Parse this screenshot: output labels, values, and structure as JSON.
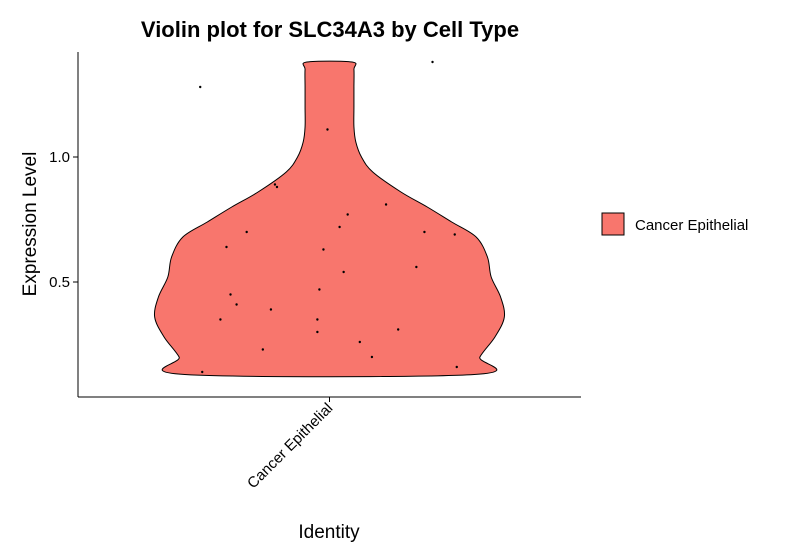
{
  "chart_data": {
    "type": "violin",
    "title": "Violin plot for SLC34A3 by Cell Type",
    "xlabel": "Identity",
    "ylabel": "Expression Level",
    "categories": [
      "Cancer Epithelial"
    ],
    "ylim": [
      0.04,
      1.42
    ],
    "yticks": [
      0.5,
      1.0
    ],
    "ytick_labels": [
      "0.5",
      "1.0"
    ],
    "grid": false,
    "legend": {
      "position": "right",
      "entries": [
        "Cancer Epithelial"
      ]
    },
    "series": [
      {
        "name": "Cancer Epithelial",
        "color": "#F8766D",
        "y_min": 0.13,
        "y_max": 1.38,
        "density_profile": [
          [
            0.13,
            0.77
          ],
          [
            0.2,
            0.8
          ],
          [
            0.28,
            0.88
          ],
          [
            0.36,
            0.93
          ],
          [
            0.44,
            0.91
          ],
          [
            0.52,
            0.86
          ],
          [
            0.6,
            0.84
          ],
          [
            0.68,
            0.78
          ],
          [
            0.74,
            0.65
          ],
          [
            0.8,
            0.52
          ],
          [
            0.86,
            0.38
          ],
          [
            0.94,
            0.23
          ],
          [
            1.0,
            0.17
          ],
          [
            1.06,
            0.14
          ],
          [
            1.12,
            0.13
          ],
          [
            1.2,
            0.13
          ],
          [
            1.28,
            0.13
          ],
          [
            1.35,
            0.13
          ],
          [
            1.38,
            0.12
          ]
        ],
        "points": [
          {
            "jitter": -0.64,
            "y": 1.28
          },
          {
            "jitter": 0.51,
            "y": 1.38
          },
          {
            "jitter": -0.01,
            "y": 1.11
          },
          {
            "jitter": -0.27,
            "y": 0.89
          },
          {
            "jitter": -0.26,
            "y": 0.88
          },
          {
            "jitter": 0.28,
            "y": 0.81
          },
          {
            "jitter": 0.09,
            "y": 0.77
          },
          {
            "jitter": 0.05,
            "y": 0.72
          },
          {
            "jitter": -0.41,
            "y": 0.7
          },
          {
            "jitter": 0.47,
            "y": 0.7
          },
          {
            "jitter": 0.62,
            "y": 0.69
          },
          {
            "jitter": -0.51,
            "y": 0.64
          },
          {
            "jitter": -0.03,
            "y": 0.63
          },
          {
            "jitter": 0.43,
            "y": 0.56
          },
          {
            "jitter": 0.07,
            "y": 0.54
          },
          {
            "jitter": -0.05,
            "y": 0.47
          },
          {
            "jitter": -0.49,
            "y": 0.45
          },
          {
            "jitter": -0.46,
            "y": 0.41
          },
          {
            "jitter": -0.29,
            "y": 0.39
          },
          {
            "jitter": -0.54,
            "y": 0.35
          },
          {
            "jitter": -0.06,
            "y": 0.35
          },
          {
            "jitter": 0.34,
            "y": 0.31
          },
          {
            "jitter": -0.06,
            "y": 0.3
          },
          {
            "jitter": 0.15,
            "y": 0.26
          },
          {
            "jitter": -0.33,
            "y": 0.23
          },
          {
            "jitter": 0.21,
            "y": 0.2
          },
          {
            "jitter": 0.63,
            "y": 0.16
          },
          {
            "jitter": -0.63,
            "y": 0.14
          }
        ]
      }
    ]
  }
}
